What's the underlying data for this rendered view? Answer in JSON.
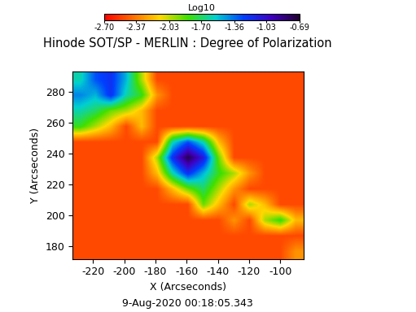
{
  "chart_data": {
    "type": "heatmap",
    "title": "Hinode SOT/SP - MERLIN : Degree of Polarization",
    "x_label": "X (Arcseconds)",
    "y_label": "Y (Arcseconds)",
    "annotation": "9-Aug-2020 00:18:05.343",
    "colorbar_label": "Log10",
    "xlim": [
      -233,
      -85
    ],
    "ylim": [
      172,
      293
    ],
    "xticks": [
      -220,
      -200,
      -180,
      -160,
      -140,
      -120,
      -100
    ],
    "yticks": [
      180,
      200,
      220,
      240,
      260,
      280
    ],
    "colorbar_range": [
      -2.7,
      -0.69
    ],
    "colorbar_ticks": [
      {
        "value": -2.7,
        "label": "-2.70"
      },
      {
        "value": -2.37,
        "label": "-2.37"
      },
      {
        "value": -2.03,
        "label": "-2.03"
      },
      {
        "value": -1.7,
        "label": "-1.70"
      },
      {
        "value": -1.36,
        "label": "-1.36"
      },
      {
        "value": -1.03,
        "label": "-1.03"
      },
      {
        "value": -0.69,
        "label": "-0.69"
      }
    ],
    "cells": [
      [
        -2.5,
        -2.5,
        -2.5,
        -2.5,
        -2.5,
        -2.5,
        -2.5,
        -2.5,
        -2.5,
        -2.5,
        -2.5,
        -2.5,
        -2.5,
        -2.5,
        -2.3
      ],
      [
        -2.5,
        -2.5,
        -2.5,
        -2.5,
        -2.5,
        -2.5,
        -2.5,
        -2.5,
        -2.5,
        -2.5,
        -2.5,
        -2.5,
        -2.5,
        -2.5,
        -2.5
      ],
      [
        -2.5,
        -2.5,
        -2.5,
        -2.5,
        -2.5,
        -2.5,
        -2.5,
        -2.5,
        -2.5,
        -2.5,
        -2.3,
        -2.5,
        -2.0,
        -1.8,
        -2.2
      ],
      [
        -2.5,
        -2.5,
        -2.5,
        -2.5,
        -2.5,
        -2.5,
        -2.5,
        -2.5,
        -1.9,
        -2.2,
        -2.5,
        -2.0,
        -2.2,
        -2.5,
        -2.5
      ],
      [
        -2.5,
        -2.5,
        -2.5,
        -2.5,
        -2.5,
        -2.5,
        -2.2,
        -1.9,
        -1.7,
        -2.0,
        -2.3,
        -2.5,
        -2.5,
        -2.5,
        -2.5
      ],
      [
        -2.5,
        -2.5,
        -2.5,
        -2.5,
        -2.5,
        -2.2,
        -1.6,
        -1.2,
        -1.5,
        -1.8,
        -2.0,
        -2.3,
        -2.5,
        -2.5,
        -2.5
      ],
      [
        -2.5,
        -2.5,
        -2.5,
        -2.5,
        -2.5,
        -2.0,
        -1.2,
        -0.75,
        -1.1,
        -1.9,
        -2.5,
        -2.5,
        -2.5,
        -2.5,
        -2.5
      ],
      [
        -2.5,
        -2.5,
        -2.5,
        -2.5,
        -2.5,
        -2.5,
        -1.6,
        -1.3,
        -1.6,
        -2.2,
        -2.5,
        -2.5,
        -2.5,
        -2.5,
        -2.5
      ],
      [
        -1.8,
        -2.0,
        -2.2,
        -2.5,
        -2.2,
        -2.5,
        -2.5,
        -2.5,
        -2.5,
        -2.5,
        -2.5,
        -2.5,
        -2.5,
        -2.5,
        -2.5
      ],
      [
        -1.6,
        -1.7,
        -1.9,
        -2.0,
        -2.2,
        -2.5,
        -2.5,
        -2.5,
        -2.5,
        -2.5,
        -2.5,
        -2.5,
        -2.5,
        -2.5,
        -2.5
      ],
      [
        -1.4,
        -1.5,
        -1.2,
        -1.6,
        -1.8,
        -2.3,
        -2.5,
        -2.5,
        -2.5,
        -2.5,
        -2.5,
        -2.5,
        -2.5,
        -2.5,
        -2.5
      ],
      [
        -1.6,
        -1.3,
        -1.2,
        -1.5,
        -2.0,
        -2.5,
        -2.5,
        -2.5,
        -2.5,
        -2.5,
        -2.5,
        -2.5,
        -2.5,
        -2.5,
        -2.5
      ]
    ]
  }
}
